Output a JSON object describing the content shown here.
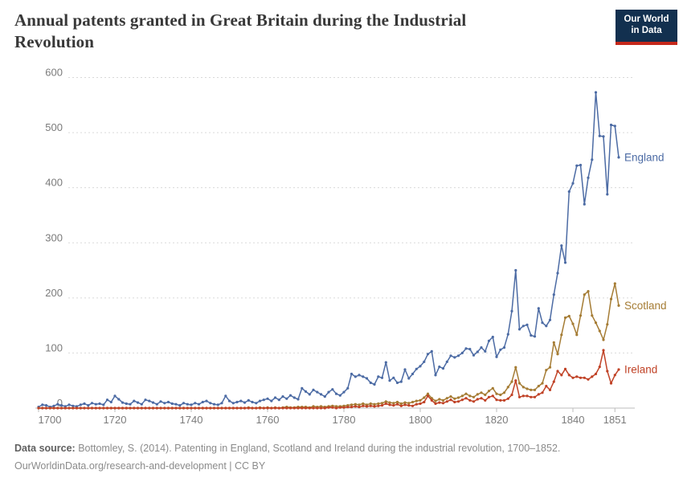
{
  "header": {
    "title": "Annual patents granted in Great Britain during the Industrial Revolution",
    "logo": {
      "line1": "Our World",
      "line2": "in Data",
      "bg_color": "#12304F",
      "bar_color": "#C5281B"
    }
  },
  "footer": {
    "source_label": "Data source:",
    "source_text": " Bottomley, S. (2014). Patenting in England, Scotland and Ireland during the industrial revolution, 1700–1852.",
    "link_line": "OurWorldinData.org/research-and-development | CC BY"
  },
  "chart_data": {
    "type": "line",
    "title": "Annual patents granted in Great Britain during the Industrial Revolution",
    "xlabel": "",
    "ylabel": "",
    "x_start_year": 1700,
    "x_end_year": 1852,
    "x_ticks": [
      1700,
      1720,
      1740,
      1760,
      1780,
      1800,
      1820,
      1840,
      1851
    ],
    "y_ticks": [
      0,
      100,
      200,
      300,
      400,
      500,
      600
    ],
    "ylim": [
      0,
      600
    ],
    "grid": "horizontal-dashed",
    "legend_position": "end-of-line-labels",
    "marker": "dot",
    "axis_color": "#bdbdbd",
    "grid_color": "#d9d9d9",
    "tick_label_color": "#7b7b7b",
    "series": [
      {
        "name": "England",
        "color": "#4C6BA4",
        "values": [
          2,
          6,
          5,
          2,
          4,
          7,
          5,
          3,
          6,
          4,
          3,
          6,
          8,
          5,
          9,
          7,
          8,
          6,
          15,
          11,
          22,
          16,
          10,
          8,
          7,
          13,
          10,
          7,
          15,
          13,
          10,
          7,
          12,
          9,
          11,
          8,
          7,
          5,
          9,
          7,
          6,
          9,
          7,
          11,
          13,
          9,
          7,
          6,
          9,
          22,
          13,
          9,
          11,
          13,
          10,
          14,
          11,
          9,
          13,
          15,
          17,
          13,
          19,
          15,
          21,
          17,
          23,
          19,
          16,
          36,
          30,
          25,
          33,
          29,
          25,
          21,
          29,
          34,
          26,
          23,
          29,
          36,
          62,
          57,
          60,
          57,
          54,
          46,
          43,
          57,
          55,
          83,
          50,
          55,
          46,
          48,
          70,
          54,
          62,
          71,
          76,
          84,
          98,
          103,
          60,
          75,
          72,
          84,
          95,
          92,
          95,
          100,
          108,
          107,
          96,
          102,
          110,
          103,
          122,
          129,
          93,
          106,
          110,
          134,
          176,
          250,
          143,
          149,
          151,
          132,
          130,
          181,
          155,
          149,
          160,
          206,
          245,
          295,
          264,
          393,
          408,
          440,
          441,
          370,
          418,
          451,
          573,
          494,
          493,
          388,
          514,
          512,
          455
        ]
      },
      {
        "name": "Scotland",
        "color": "#A57C34",
        "values": [
          0,
          0,
          0,
          0,
          0,
          0,
          0,
          0,
          0,
          0,
          0,
          0,
          0,
          0,
          0,
          0,
          0,
          0,
          0,
          0,
          0,
          0,
          0,
          0,
          0,
          0,
          0,
          0,
          0,
          0,
          0,
          0,
          0,
          0,
          0,
          0,
          0,
          0,
          0,
          0,
          0,
          0,
          0,
          0,
          0,
          0,
          0,
          0,
          0,
          0,
          0,
          0,
          0,
          0,
          0,
          1,
          0,
          0,
          1,
          0,
          1,
          0,
          1,
          0,
          1,
          2,
          1,
          1,
          2,
          2,
          2,
          1,
          3,
          2,
          3,
          2,
          3,
          4,
          3,
          3,
          4,
          5,
          6,
          7,
          6,
          8,
          6,
          8,
          7,
          8,
          9,
          12,
          10,
          9,
          11,
          8,
          10,
          9,
          11,
          13,
          14,
          19,
          26,
          18,
          13,
          16,
          14,
          18,
          21,
          17,
          19,
          22,
          26,
          22,
          20,
          25,
          28,
          24,
          31,
          36,
          26,
          24,
          28,
          38,
          48,
          74,
          45,
          38,
          35,
          33,
          33,
          40,
          45,
          69,
          74,
          119,
          98,
          133,
          164,
          167,
          153,
          133,
          168,
          206,
          212,
          168,
          155,
          140,
          124,
          152,
          198,
          226,
          186
        ]
      },
      {
        "name": "Ireland",
        "color": "#C04226",
        "values": [
          0,
          0,
          0,
          0,
          0,
          0,
          0,
          0,
          0,
          0,
          0,
          0,
          0,
          0,
          0,
          0,
          0,
          0,
          0,
          0,
          0,
          0,
          0,
          0,
          0,
          0,
          0,
          0,
          0,
          0,
          0,
          0,
          0,
          0,
          0,
          0,
          0,
          0,
          0,
          0,
          0,
          0,
          0,
          0,
          0,
          0,
          0,
          0,
          0,
          0,
          0,
          0,
          0,
          0,
          0,
          0,
          0,
          0,
          0,
          0,
          0,
          0,
          0,
          0,
          0,
          0,
          0,
          0,
          0,
          0,
          0,
          0,
          0,
          0,
          0,
          0,
          1,
          1,
          0,
          1,
          1,
          2,
          2,
          3,
          2,
          4,
          3,
          4,
          3,
          4,
          5,
          8,
          6,
          5,
          7,
          4,
          6,
          5,
          4,
          7,
          8,
          11,
          22,
          14,
          8,
          10,
          9,
          12,
          15,
          11,
          12,
          15,
          18,
          14,
          12,
          16,
          18,
          14,
          20,
          22,
          15,
          14,
          14,
          17,
          24,
          50,
          20,
          22,
          22,
          20,
          20,
          25,
          28,
          40,
          33,
          48,
          67,
          60,
          71,
          60,
          55,
          57,
          55,
          55,
          52,
          57,
          62,
          75,
          105,
          67,
          45,
          60,
          70
        ]
      }
    ]
  }
}
